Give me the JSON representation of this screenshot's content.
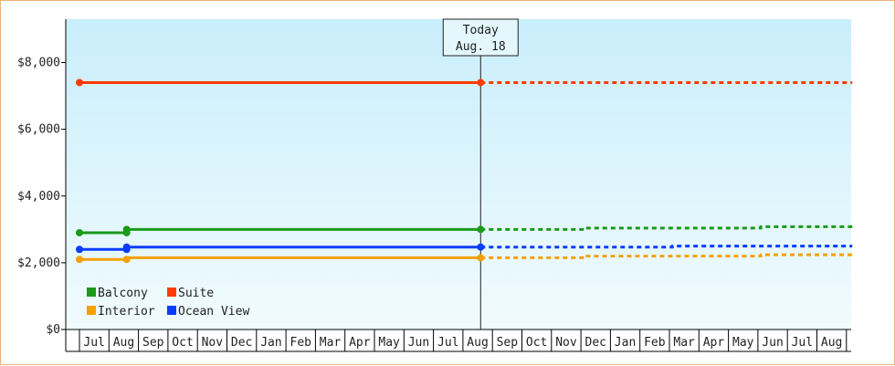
{
  "chart_data": {
    "type": "line",
    "title": "",
    "xlabel": "",
    "ylabel": "",
    "ylim": [
      0,
      9300
    ],
    "yticks": [
      0,
      2000,
      4000,
      6000,
      8000
    ],
    "ytick_labels": [
      "$0",
      "$2,000",
      "$4,000",
      "$6,000",
      "$8,000"
    ],
    "months": [
      "Jul",
      "Aug",
      "Sep",
      "Oct",
      "Nov",
      "Dec",
      "Jan",
      "Feb",
      "Mar",
      "Apr",
      "May",
      "Jun",
      "Jul",
      "Aug",
      "Sep",
      "Oct",
      "Nov",
      "Dec",
      "Jan",
      "Feb",
      "Mar",
      "Apr",
      "May",
      "Jun",
      "Jul",
      "Aug"
    ],
    "grid": false,
    "legend_position": "bottom-left",
    "today": {
      "line1": "Today",
      "line2": "Aug. 18",
      "month_index": 13.6
    },
    "series": [
      {
        "name": "Balcony",
        "color": "#1a9a1a",
        "history": [
          [
            0,
            2900
          ],
          [
            1.6,
            2900
          ],
          [
            1.6,
            3000
          ],
          [
            13.6,
            3000
          ]
        ],
        "markers": [
          0,
          1.6,
          1.6,
          13.6
        ],
        "forecast": [
          [
            13.6,
            3000
          ],
          [
            17.1,
            3000
          ],
          [
            17.1,
            3040
          ],
          [
            23.1,
            3040
          ],
          [
            23.1,
            3080
          ],
          [
            26.2,
            3080
          ]
        ]
      },
      {
        "name": "Suite",
        "color": "#ff3b00",
        "history": [
          [
            0,
            7400
          ],
          [
            13.6,
            7400
          ]
        ],
        "markers": [
          0,
          13.6
        ],
        "forecast": [
          [
            13.6,
            7400
          ],
          [
            26.2,
            7400
          ]
        ]
      },
      {
        "name": "Interior",
        "color": "#f5a000",
        "history": [
          [
            0,
            2100
          ],
          [
            1.6,
            2100
          ],
          [
            1.6,
            2150
          ],
          [
            13.6,
            2150
          ]
        ],
        "markers": [
          0,
          1.6,
          13.6
        ],
        "forecast": [
          [
            13.6,
            2150
          ],
          [
            17.1,
            2150
          ],
          [
            17.1,
            2200
          ],
          [
            23.1,
            2200
          ],
          [
            23.1,
            2240
          ],
          [
            26.2,
            2240
          ]
        ]
      },
      {
        "name": "Ocean View",
        "color": "#0a3cff",
        "history": [
          [
            0,
            2400
          ],
          [
            1.6,
            2400
          ],
          [
            1.6,
            2470
          ],
          [
            13.6,
            2470
          ]
        ],
        "markers": [
          0,
          1.6,
          1.6,
          13.6
        ],
        "forecast": [
          [
            13.6,
            2470
          ],
          [
            20.1,
            2470
          ],
          [
            20.1,
            2500
          ],
          [
            26.2,
            2500
          ]
        ]
      }
    ]
  }
}
